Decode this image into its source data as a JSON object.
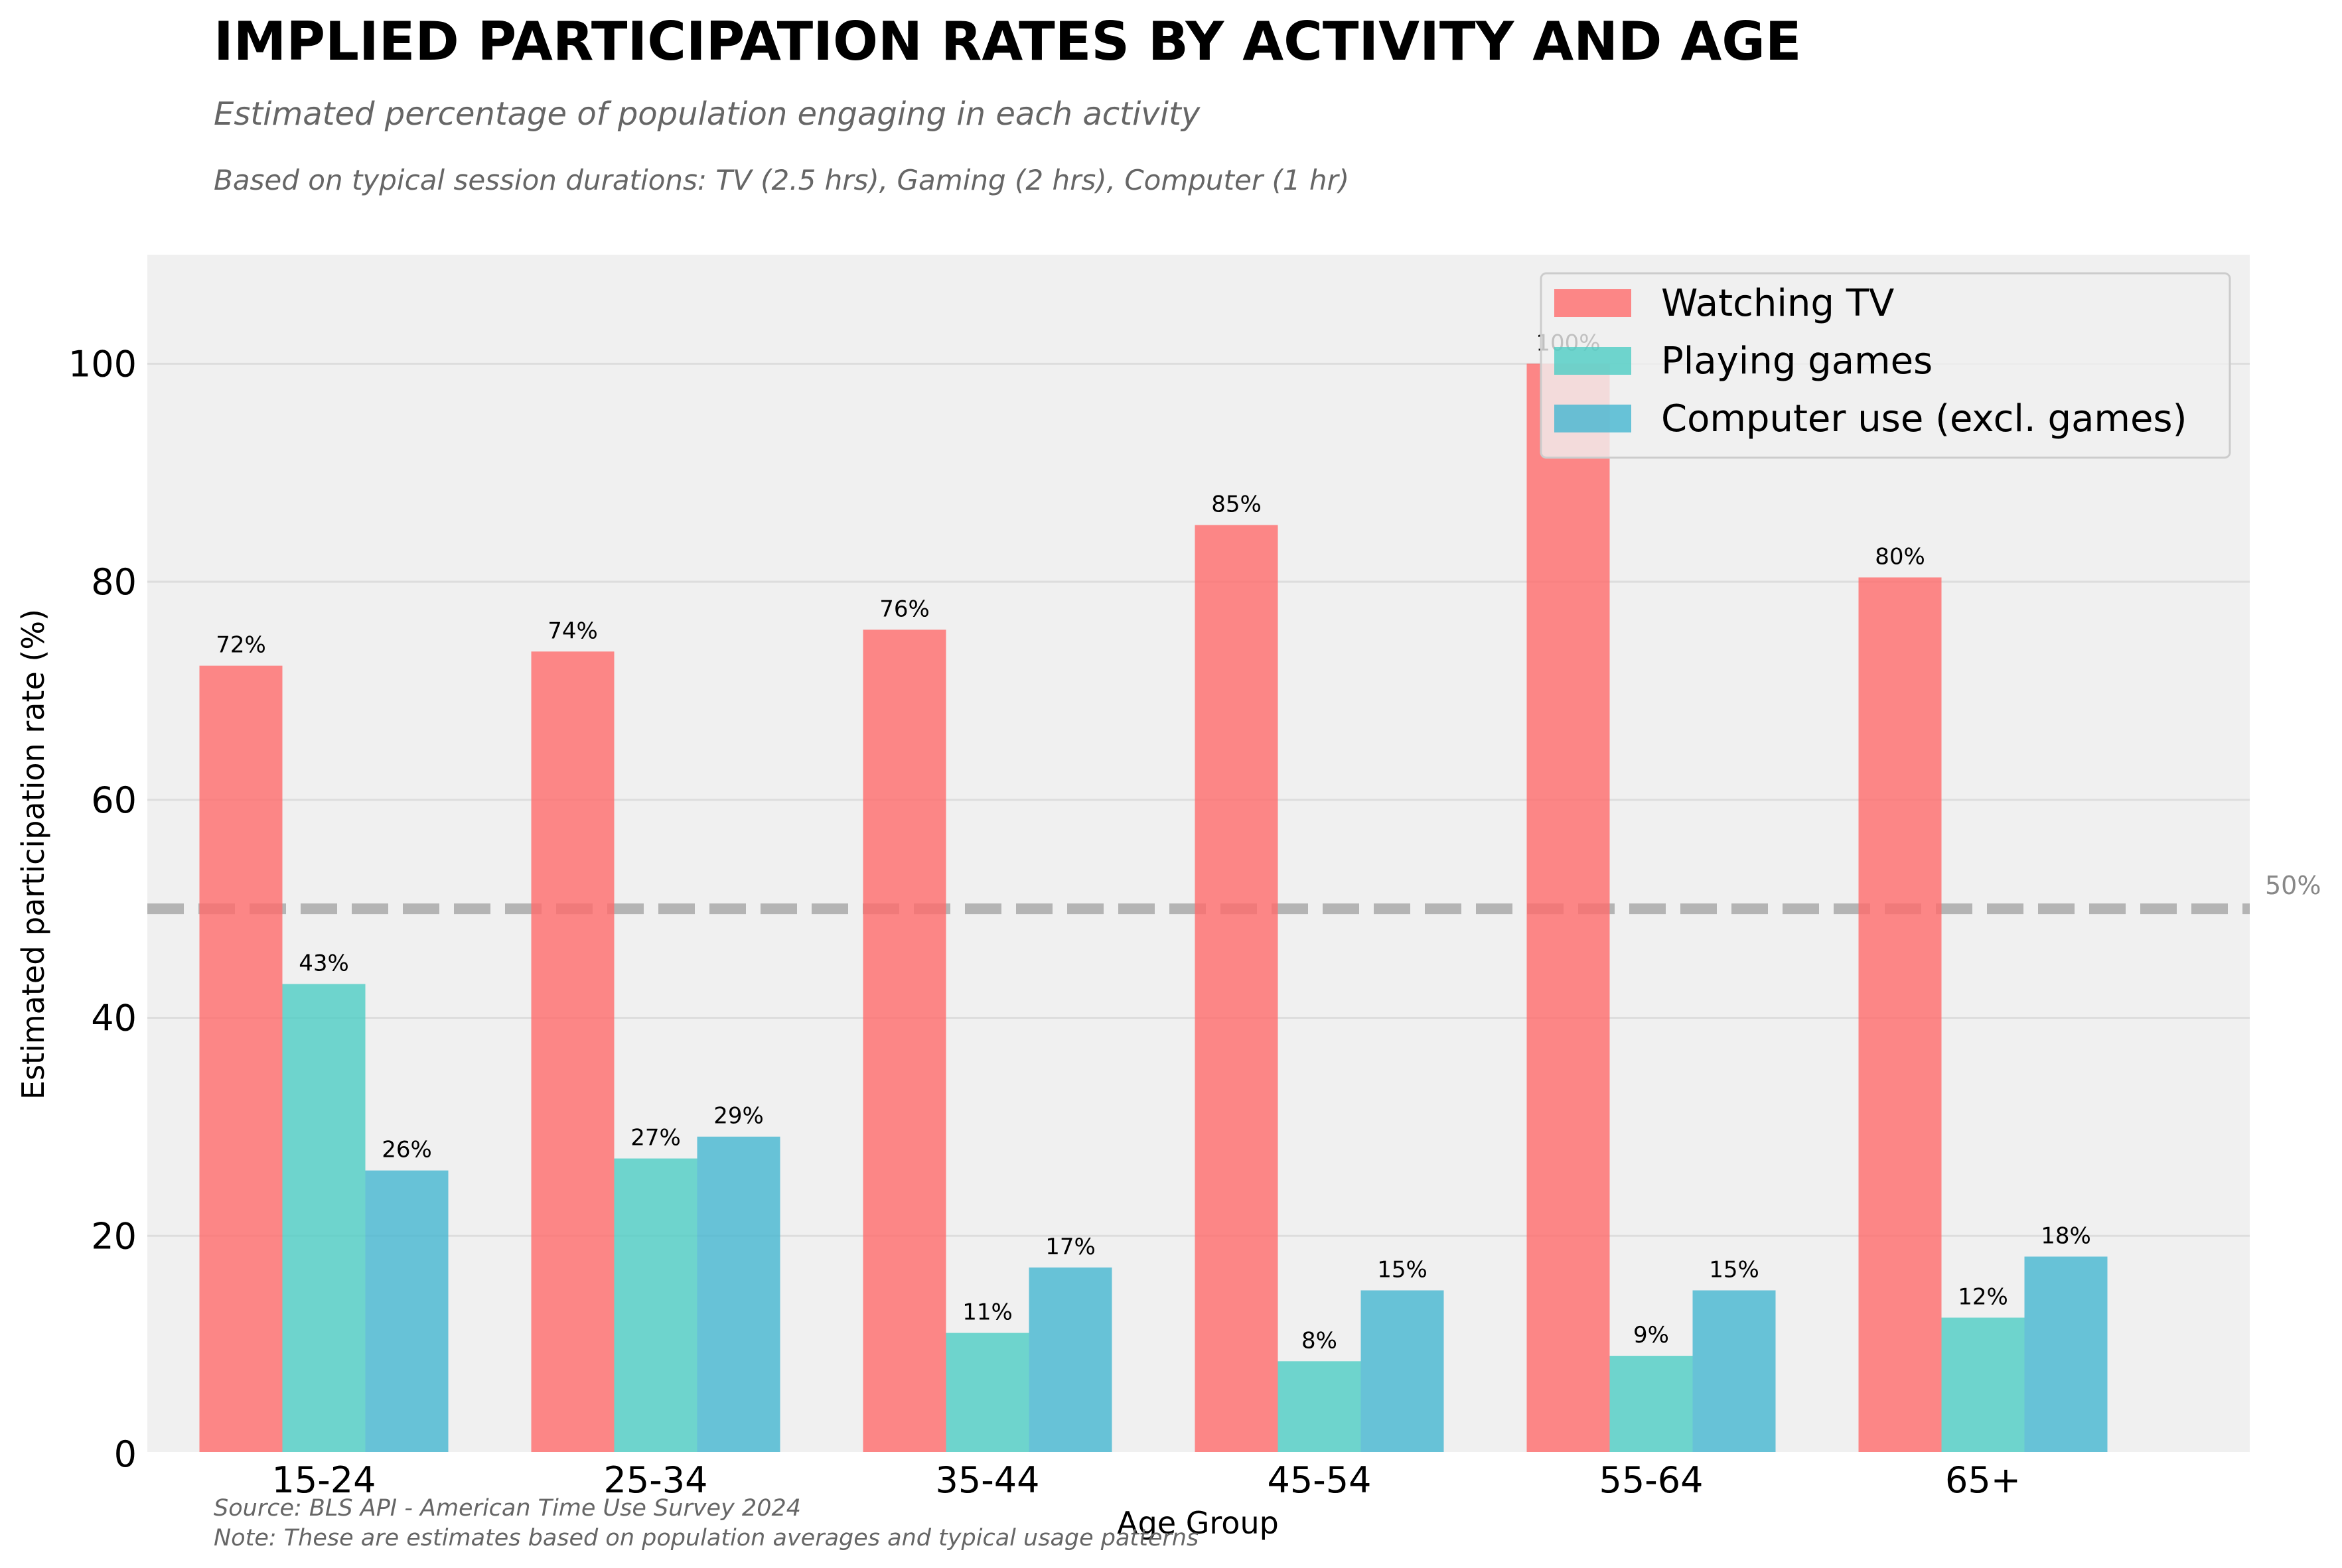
{
  "chart_data": {
    "type": "bar",
    "title": "IMPLIED PARTICIPATION RATES BY ACTIVITY AND AGE",
    "subtitle": "Estimated percentage of population engaging in each activity",
    "note": "Based on typical session durations: TV (2.5 hrs), Gaming (2 hrs), Computer (1 hr)",
    "xlabel": "Age Group",
    "ylabel": "Estimated participation rate (%)",
    "ylim": [
      0,
      110
    ],
    "yticks": [
      0,
      20,
      40,
      60,
      80,
      100
    ],
    "grid": "horizontal",
    "legend_position": "top-right",
    "categories": [
      "15-24",
      "25-34",
      "35-44",
      "45-54",
      "55-64",
      "65+"
    ],
    "series": [
      {
        "name": "Watching TV",
        "color": "#FF6B6B",
        "values": [
          72.3,
          73.6,
          75.6,
          85.2,
          100,
          80.4
        ],
        "labels": [
          "72%",
          "74%",
          "76%",
          "85%",
          "100%",
          "80%"
        ]
      },
      {
        "name": "Playing games",
        "color": "#4ECDC4",
        "values": [
          43.1,
          27.1,
          11.1,
          8.5,
          9.0,
          12.5
        ],
        "labels": [
          "43%",
          "27%",
          "11%",
          "8%",
          "9%",
          "12%"
        ]
      },
      {
        "name": "Computer use (excl. games)",
        "color": "#45B7D1",
        "values": [
          26.0,
          29.1,
          17.1,
          15.0,
          15.0,
          18.1
        ],
        "labels": [
          "26%",
          "29%",
          "17%",
          "15%",
          "15%",
          "18%"
        ]
      }
    ],
    "reference_line": {
      "value": 50,
      "label": "50%",
      "color": "#aaaaaa",
      "style": "dashed"
    },
    "background_color": "#f0f0f0",
    "source": "Source: BLS API - American Time Use Survey 2024",
    "footnote": "Note: These are estimates based on population averages and typical usage patterns"
  }
}
